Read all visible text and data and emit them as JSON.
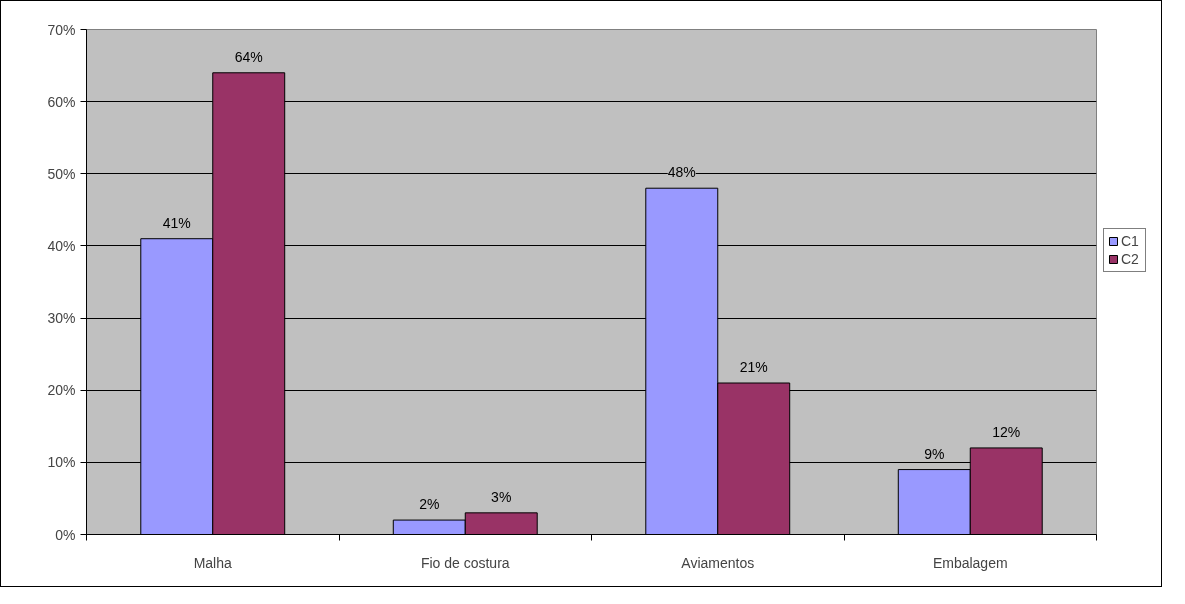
{
  "chart_data": {
    "type": "bar",
    "categories": [
      "Malha",
      "Fio de costura",
      "Aviamentos",
      "Embalagem"
    ],
    "series": [
      {
        "name": "C1",
        "color": "#9999ff",
        "values": [
          41,
          2,
          48,
          9
        ],
        "value_labels": [
          "41%",
          "2%",
          "48%",
          "9%"
        ]
      },
      {
        "name": "C2",
        "color": "#993366",
        "values": [
          64,
          3,
          21,
          12
        ],
        "value_labels": [
          "64%",
          "3%",
          "21%",
          "12%"
        ]
      }
    ],
    "ylim": [
      0,
      70
    ],
    "yticks": [
      {
        "value": 0,
        "label": "0%"
      },
      {
        "value": 10,
        "label": "10%"
      },
      {
        "value": 20,
        "label": "20%"
      },
      {
        "value": 30,
        "label": "30%"
      },
      {
        "value": 40,
        "label": "40%"
      },
      {
        "value": 50,
        "label": "50%"
      },
      {
        "value": 60,
        "label": "60%"
      },
      {
        "value": 70,
        "label": "70%"
      }
    ],
    "grid": "y",
    "legend": "right"
  }
}
